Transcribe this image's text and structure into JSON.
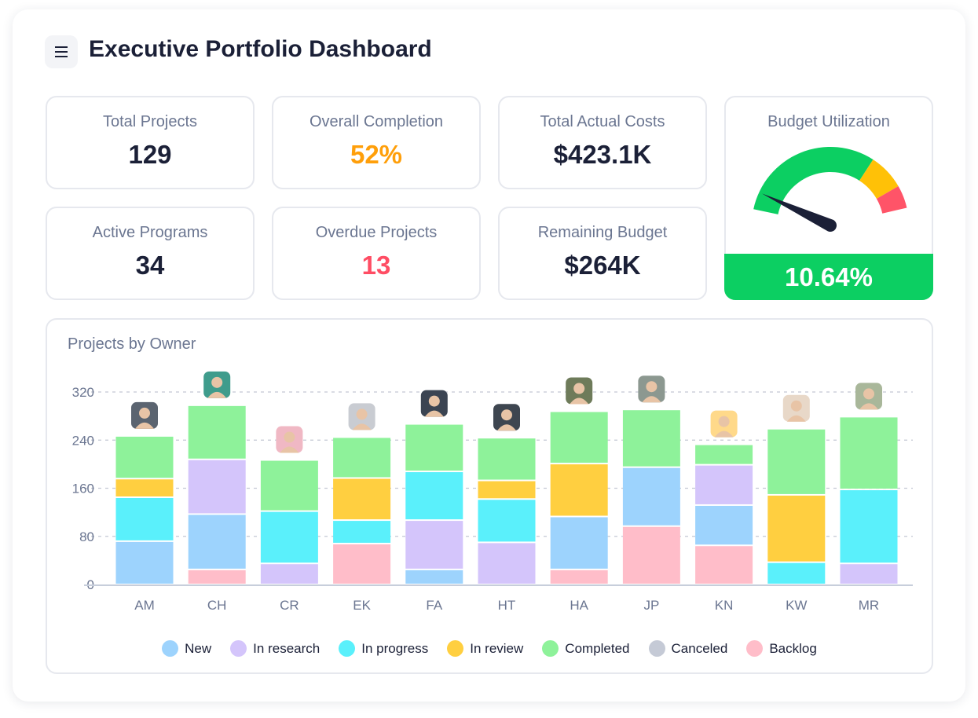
{
  "header": {
    "title": "Executive Portfolio Dashboard",
    "menu_icon": "hamburger-icon"
  },
  "kpis": [
    {
      "label": "Total Projects",
      "value": "129",
      "color": "#1b2037"
    },
    {
      "label": "Overall Completion",
      "value": "52%",
      "color": "#ff9f0a"
    },
    {
      "label": "Total Actual Costs",
      "value": "$423.1K",
      "color": "#1b2037"
    },
    {
      "label": "Active Programs",
      "value": "34",
      "color": "#1b2037"
    },
    {
      "label": "Overdue Projects",
      "value": "13",
      "color": "#ff4d64"
    },
    {
      "label": "Remaining Budget",
      "value": "$264K",
      "color": "#1b2037"
    }
  ],
  "gauge": {
    "label": "Budget Utilization",
    "value": "10.64%",
    "colors": {
      "green": "#0ccf62",
      "yellow": "#ffc107",
      "red": "#ff5468",
      "needle": "#1b2037"
    }
  },
  "chart_data": {
    "type": "bar",
    "stacked": true,
    "title": "Projects by Owner",
    "categories": [
      "AM",
      "CH",
      "CR",
      "EK",
      "FA",
      "HT",
      "HA",
      "JP",
      "KN",
      "KW",
      "MR"
    ],
    "yticks": [
      "0",
      "80",
      "160",
      "240",
      "320"
    ],
    "ylim": [
      0,
      330
    ],
    "grid": true,
    "legend_position": "bottom",
    "series": [
      {
        "name": "Backlog",
        "color": "#ffbdc9",
        "values": [
          0,
          25,
          0,
          68,
          0,
          0,
          25,
          97,
          65,
          0,
          0
        ]
      },
      {
        "name": "New",
        "color": "#9dd3fd",
        "values": [
          72,
          92,
          0,
          0,
          25,
          0,
          88,
          98,
          67,
          0,
          0
        ]
      },
      {
        "name": "In research",
        "color": "#d4c5fb",
        "values": [
          0,
          91,
          35,
          0,
          82,
          70,
          0,
          0,
          67,
          0,
          35
        ]
      },
      {
        "name": "In progress",
        "color": "#5af0fb",
        "values": [
          73,
          0,
          87,
          39,
          81,
          72,
          0,
          0,
          0,
          37,
          123
        ]
      },
      {
        "name": "In review",
        "color": "#ffcf40",
        "values": [
          31,
          0,
          0,
          70,
          0,
          31,
          88,
          0,
          0,
          112,
          0
        ]
      },
      {
        "name": "Completed",
        "color": "#8ef29a",
        "values": [
          71,
          90,
          85,
          68,
          79,
          71,
          87,
          96,
          34,
          110,
          121
        ]
      },
      {
        "name": "Canceled",
        "color": "#c5cad6",
        "values": [
          0,
          0,
          0,
          0,
          0,
          0,
          0,
          0,
          0,
          0,
          0
        ]
      }
    ],
    "legend": [
      {
        "name": "New",
        "color": "#9dd3fd"
      },
      {
        "name": "In research",
        "color": "#d4c5fb"
      },
      {
        "name": "In progress",
        "color": "#5af0fb"
      },
      {
        "name": "In review",
        "color": "#ffcf40"
      },
      {
        "name": "Completed",
        "color": "#8ef29a"
      },
      {
        "name": "Canceled",
        "color": "#c5cad6"
      },
      {
        "name": "Backlog",
        "color": "#ffbdc9"
      }
    ],
    "avatar_colors": [
      "#5b6470",
      "#3f9c8c",
      "#f0b8c4",
      "#c9ccd2",
      "#3b4452",
      "#3e4650",
      "#6e7b5a",
      "#8c9890",
      "#ffd98a",
      "#e8d8c8",
      "#a9b79a"
    ]
  }
}
